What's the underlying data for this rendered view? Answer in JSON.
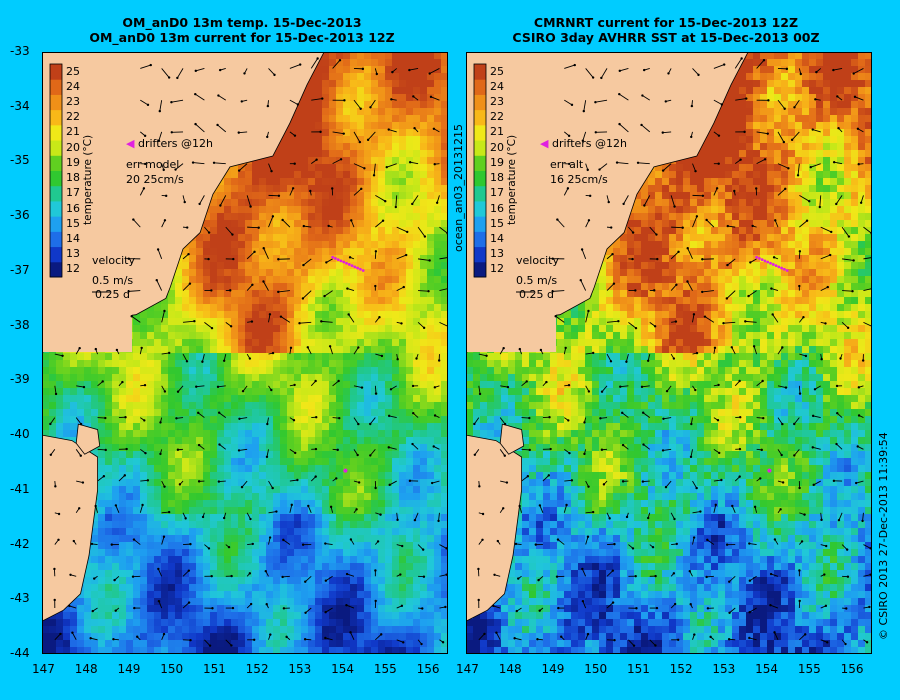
{
  "left_panel": {
    "title_line1": "OM_anD0 13m temp. 15-Dec-2013",
    "title_line2": "OM_anD0 13m current for 15-Dec-2013 12Z",
    "drifters_label": "drifters @12h",
    "err_label": "err model",
    "err_value": "20 25cm/s",
    "velocity_label": "velocity",
    "velocity_scale": "0.5 m/s",
    "velocity_time": "0.25 d",
    "colorbar_title": "temperature (°C)",
    "side_label": "ocean_an03_20131215"
  },
  "right_panel": {
    "title_line1": "CMRNRT current for 15-Dec-2013 12Z",
    "title_line2": "CSIRO 3day AVHRR SST at 15-Dec-2013 00Z",
    "drifters_label": "drifters @12h",
    "err_label": "err alt",
    "err_value": "16 25cm/s",
    "velocity_label": "velocity",
    "velocity_scale": "0.5 m/s",
    "velocity_time": "0.25 d",
    "colorbar_title": "temperature (°C)",
    "side_label": "© CSIRO 2013   27-Dec-2013 11:39:54"
  },
  "colorbar": {
    "ticks": [
      "12",
      "13",
      "14",
      "15",
      "16",
      "17",
      "18",
      "19",
      "20",
      "21",
      "22",
      "23",
      "24",
      "25"
    ],
    "colors": [
      "#0a1a80",
      "#1038c8",
      "#1e6ee8",
      "#1ea0f0",
      "#20c8d8",
      "#20c890",
      "#30c830",
      "#60d020",
      "#c8e818",
      "#f0e818",
      "#f8b818",
      "#f09018",
      "#e06818",
      "#c04018"
    ]
  },
  "axes": {
    "x_ticks": [
      "147",
      "148",
      "149",
      "150",
      "151",
      "152",
      "153",
      "154",
      "155",
      "156"
    ],
    "y_ticks": [
      "-33",
      "-34",
      "-35",
      "-36",
      "-37",
      "-38",
      "-39",
      "-40",
      "-41",
      "-42",
      "-43",
      "-44"
    ],
    "lon_range": [
      147,
      156.5
    ],
    "lat_range": [
      -44,
      -33
    ]
  },
  "colors": {
    "background": "#00ccff",
    "land": "#f6c9a0",
    "drifter": "#e020e0"
  }
}
